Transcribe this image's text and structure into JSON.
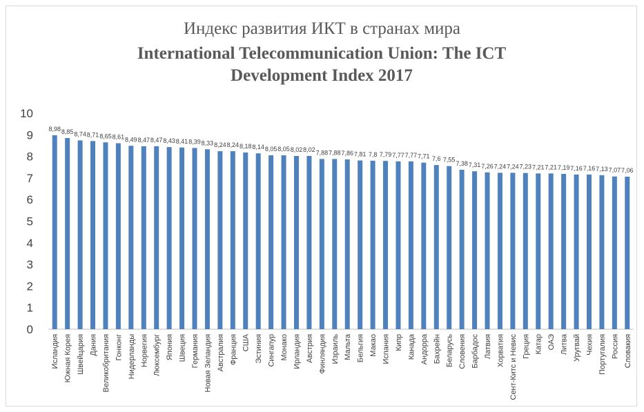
{
  "chart_data": {
    "type": "bar",
    "title": "Индекс развития ИКТ в странах мира",
    "subtitle": "International Telecommunication Union: The ICT Development Index 2017",
    "categories": [
      "Исландия",
      "Южная Корея",
      "Швейцария",
      "Дания",
      "Великобритания",
      "Гонконг",
      "Нидерланды",
      "Норвегия",
      "Люксембург",
      "Япония",
      "Швеция",
      "Германия",
      "Новая Зеландия",
      "Австралия",
      "Франция",
      "США",
      "Эстиния",
      "Сингапур",
      "Монако",
      "Ирландия",
      "Австрия",
      "Финляндия",
      "Израиль",
      "Мальта",
      "Бельгия",
      "Макао",
      "Испания",
      "Кипр",
      "Канада",
      "Андорра",
      "Бахрейн",
      "Беларусь",
      "Словения",
      "Барбадос",
      "Латвия",
      "Хорватия",
      "Сент-Китс и Невис",
      "Греция",
      "Катар",
      "ОАЭ",
      "Литва",
      "Уругвай",
      "Чехия",
      "Португалия",
      "Россия",
      "Словакия"
    ],
    "values": [
      8.98,
      8.85,
      8.74,
      8.71,
      8.65,
      8.61,
      8.49,
      8.47,
      8.47,
      8.43,
      8.41,
      8.39,
      8.33,
      8.24,
      8.24,
      8.18,
      8.14,
      8.05,
      8.05,
      8.02,
      8.02,
      7.88,
      7.88,
      7.86,
      7.81,
      7.8,
      7.79,
      7.77,
      7.77,
      7.71,
      7.6,
      7.55,
      7.38,
      7.31,
      7.26,
      7.24,
      7.24,
      7.23,
      7.21,
      7.21,
      7.19,
      7.16,
      7.16,
      7.13,
      7.07,
      7.06
    ],
    "value_labels": [
      "8,98",
      "8,85",
      "8,74",
      "8,71",
      "8,65",
      "8,61",
      "8,49",
      "8,47",
      "8,47",
      "8,43",
      "8,41",
      "8,39",
      "8,33",
      "8,24",
      "8,24",
      "8,18",
      "8,14",
      "8,05",
      "8,05",
      "8,02",
      "8,02",
      "7,88",
      "7,88",
      "7,86",
      "7,81",
      "7,8",
      "7,79",
      "7,77",
      "7,77",
      "7,71",
      "7,6",
      "7,55",
      "7,38",
      "7,31",
      "7,26",
      "7,24",
      "7,24",
      "7,23",
      "7,21",
      "7,21",
      "7,19",
      "7,16",
      "7,16",
      "7,13",
      "7,07",
      "7,06"
    ],
    "color": "#4f81bd",
    "ylim": [
      0,
      10
    ],
    "yticks": [
      0,
      1,
      2,
      3,
      4,
      5,
      6,
      7,
      8,
      9,
      10
    ],
    "grid": false
  }
}
